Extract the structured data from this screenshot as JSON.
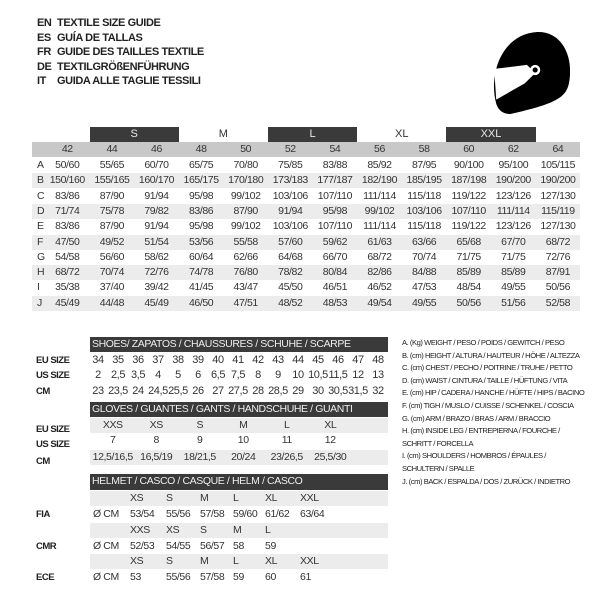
{
  "header": {
    "lines": [
      {
        "code": "EN",
        "text": "TEXTILE SIZE GUIDE"
      },
      {
        "code": "ES",
        "text": "GUÍA DE TALLAS"
      },
      {
        "code": "FR",
        "text": "GUIDE DES TAILLES TEXTILE"
      },
      {
        "code": "DE",
        "text": "TEXTILGRÖßENFÜHRUNG"
      },
      {
        "code": "IT",
        "text": "GUIDA ALLE TAGLIE TESSILI"
      }
    ],
    "icon": "helmet-icon"
  },
  "textile": {
    "size_groups": [
      "S",
      "M",
      "L",
      "XL",
      "XXL"
    ],
    "columns": [
      "42",
      "44",
      "46",
      "48",
      "50",
      "52",
      "54",
      "56",
      "58",
      "60",
      "62",
      "64"
    ],
    "rows": [
      {
        "label": "A",
        "values": [
          "50/60",
          "55/65",
          "60/70",
          "65/75",
          "70/80",
          "75/85",
          "83/88",
          "85/92",
          "87/95",
          "90/100",
          "95/100",
          "105/115"
        ]
      },
      {
        "label": "B",
        "values": [
          "150/160",
          "155/165",
          "160/170",
          "165/175",
          "170/180",
          "173/183",
          "177/187",
          "182/190",
          "185/195",
          "187/198",
          "190/200",
          "190/200"
        ]
      },
      {
        "label": "C",
        "values": [
          "83/86",
          "87/90",
          "91/94",
          "95/98",
          "99/102",
          "103/106",
          "107/110",
          "111/114",
          "115/118",
          "119/122",
          "123/126",
          "127/130"
        ]
      },
      {
        "label": "D",
        "values": [
          "71/74",
          "75/78",
          "79/82",
          "83/86",
          "87/90",
          "91/94",
          "95/98",
          "99/102",
          "103/106",
          "107/110",
          "111/114",
          "115/119"
        ]
      },
      {
        "label": "E",
        "values": [
          "83/86",
          "87/90",
          "91/94",
          "95/98",
          "99/102",
          "103/106",
          "107/110",
          "111/114",
          "115/118",
          "119/122",
          "123/126",
          "127/130"
        ]
      },
      {
        "label": "F",
        "values": [
          "47/50",
          "49/52",
          "51/54",
          "53/56",
          "55/58",
          "57/60",
          "59/62",
          "61/63",
          "63/66",
          "65/68",
          "67/70",
          "68/72"
        ]
      },
      {
        "label": "G",
        "values": [
          "54/58",
          "56/60",
          "58/62",
          "60/64",
          "62/66",
          "64/68",
          "66/70",
          "68/72",
          "70/74",
          "71/75",
          "71/75",
          "72/76"
        ]
      },
      {
        "label": "H",
        "values": [
          "68/72",
          "70/74",
          "72/76",
          "74/78",
          "76/80",
          "78/82",
          "80/84",
          "82/86",
          "84/88",
          "85/89",
          "85/89",
          "87/91"
        ]
      },
      {
        "label": "I",
        "values": [
          "35/38",
          "37/40",
          "39/42",
          "41/45",
          "43/47",
          "45/50",
          "46/51",
          "46/52",
          "47/53",
          "48/54",
          "49/55",
          "50/56"
        ]
      },
      {
        "label": "J",
        "values": [
          "45/49",
          "44/48",
          "45/49",
          "46/50",
          "47/51",
          "48/52",
          "48/53",
          "49/54",
          "49/55",
          "50/56",
          "51/56",
          "52/58"
        ]
      }
    ]
  },
  "shoes": {
    "title": "SHOES/ ZAPATOS / CHAUSSURES / SCHUHE / SCARPE",
    "rows": [
      {
        "label": "EU SIZE",
        "values": [
          "34",
          "35",
          "36",
          "37",
          "38",
          "39",
          "40",
          "41",
          "42",
          "43",
          "44",
          "45",
          "46",
          "47",
          "48"
        ]
      },
      {
        "label": "US SIZE",
        "values": [
          "2",
          "2,5",
          "3,5",
          "4",
          "5",
          "6",
          "6,5",
          "7,5",
          "8",
          "9",
          "10",
          "10,5",
          "11,5",
          "12",
          "13"
        ]
      },
      {
        "label": "CM",
        "values": [
          "23",
          "23,5",
          "24",
          "24,5",
          "25,5",
          "26",
          "27",
          "27,5",
          "28",
          "28,5",
          "29",
          "30",
          "30,5",
          "31,5",
          "32"
        ]
      }
    ]
  },
  "gloves": {
    "title": "GLOVES / GUANTES / GANTS / HANDSCHUHE / GUANTI",
    "rows": [
      {
        "label": "EU SIZE",
        "values": [
          "XXS",
          "XS",
          "S",
          "M",
          "L",
          "XL"
        ]
      },
      {
        "label": "US SIZE",
        "values": [
          "7",
          "8",
          "9",
          "10",
          "11",
          "12"
        ]
      },
      {
        "label": "CM",
        "values": [
          "12,5/16,5",
          "16,5/19",
          "18/21,5",
          "20/24",
          "23/26,5",
          "25,5/30"
        ]
      }
    ]
  },
  "helmet": {
    "title": "HELMET / CASCO / CASQUE / HELM / CASCO",
    "groups": [
      {
        "label": "FIA",
        "unit": "Ø CM",
        "sizes": [
          "XS",
          "S",
          "M",
          "L",
          "XL",
          "XXL"
        ],
        "values": [
          "53/54",
          "55/56",
          "57/58",
          "59/60",
          "61/62",
          "63/64"
        ]
      },
      {
        "label": "CMR",
        "unit": "Ø CM",
        "sizes": [
          "XXS",
          "XS",
          "S",
          "M",
          "L"
        ],
        "values": [
          "52/53",
          "54/55",
          "56/57",
          "58",
          "59"
        ]
      },
      {
        "label": "ECE",
        "unit": "Ø CM",
        "sizes": [
          "XS",
          "S",
          "M",
          "L",
          "XL",
          "XXL"
        ],
        "values": [
          "53",
          "55/56",
          "57/58",
          "59",
          "60",
          "61"
        ]
      }
    ]
  },
  "legend": [
    "A. (Kg) WEIGHT / PESO / POIDS / GEWITCH / PESO",
    "B. (cm) HEIGHT / ALTURA / HAUTEUR / HÖHE / ALTEZZA",
    "C. (cm) CHEST / PECHO / POITRINE / TRUHE / PETTO",
    "D. (cm) WAIST / CINTURA / TAILLE / HÜFTUNG / VITA",
    "E. (cm) HIP / CADERA / HANCHE / HÜFTE / HIPS / BACINO",
    "F. (cm) TIGH / MUSLO / CUISSE / SCHENKEL / COSCIA",
    "G. (cm) ARM / BRAZO / BRAS / ARM / BRACCIO",
    "H. (cm) INSIDE LEG / ENTREPIERNA / FOURCHE /",
    "SCHRITT / FORCELLA",
    "I. (cm) SHOULDERS / HOMBROS / ÉPAULES /",
    "SCHULTERN / SPALLE",
    "J. (cm) BACK / ESPALDA / DOS / ZURÜCK / INDIETRO"
  ]
}
